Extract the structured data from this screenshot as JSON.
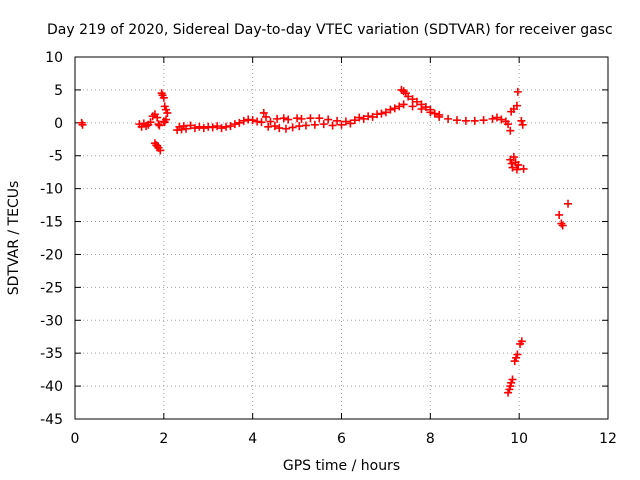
{
  "chart_data": {
    "type": "scatter",
    "title": "Day 219 of 2020, Sidereal Day-to-day VTEC variation (SDTVAR) for receiver gasc",
    "xlabel": "GPS time / hours",
    "ylabel": "SDTVAR / TECUs",
    "xlim": [
      0,
      12
    ],
    "ylim": [
      -45,
      10
    ],
    "x_ticks": [
      0,
      2,
      4,
      6,
      8,
      10,
      12
    ],
    "y_ticks": [
      10,
      5,
      0,
      -5,
      -10,
      -15,
      -20,
      -25,
      -30,
      -35,
      -40,
      -45
    ],
    "grid": true,
    "marker": "+",
    "color": "#ff0000",
    "series": [
      {
        "name": "SDTVAR",
        "points": [
          [
            0.15,
            0.0
          ],
          [
            0.17,
            -0.3
          ],
          [
            1.45,
            -0.2
          ],
          [
            1.5,
            -0.6
          ],
          [
            1.55,
            -0.1
          ],
          [
            1.6,
            -0.5
          ],
          [
            1.65,
            -0.3
          ],
          [
            1.7,
            0.1
          ],
          [
            1.75,
            1.0
          ],
          [
            1.8,
            1.3
          ],
          [
            1.85,
            0.8
          ],
          [
            1.88,
            -0.2
          ],
          [
            1.9,
            -0.4
          ],
          [
            1.85,
            -3.5
          ],
          [
            1.88,
            -3.8
          ],
          [
            1.92,
            -4.2
          ],
          [
            1.8,
            -3.1
          ],
          [
            1.83,
            -3.4
          ],
          [
            1.95,
            4.5
          ],
          [
            1.97,
            4.2
          ],
          [
            2.0,
            3.8
          ],
          [
            2.02,
            2.5
          ],
          [
            2.05,
            2.0
          ],
          [
            2.08,
            1.5
          ],
          [
            2.05,
            0.5
          ],
          [
            2.02,
            0.1
          ],
          [
            2.0,
            0.2
          ],
          [
            2.3,
            -1.1
          ],
          [
            2.35,
            -0.6
          ],
          [
            2.4,
            -1.0
          ],
          [
            2.45,
            -0.5
          ],
          [
            2.5,
            -0.9
          ],
          [
            2.6,
            -0.4
          ],
          [
            2.7,
            -0.8
          ],
          [
            2.8,
            -0.6
          ],
          [
            2.9,
            -0.8
          ],
          [
            3.0,
            -0.6
          ],
          [
            3.1,
            -0.7
          ],
          [
            3.2,
            -0.5
          ],
          [
            3.3,
            -0.8
          ],
          [
            3.4,
            -0.6
          ],
          [
            3.5,
            -0.5
          ],
          [
            3.6,
            -0.2
          ],
          [
            3.7,
            0.0
          ],
          [
            3.8,
            0.3
          ],
          [
            3.9,
            0.5
          ],
          [
            4.0,
            0.4
          ],
          [
            4.1,
            0.2
          ],
          [
            4.2,
            0.1
          ],
          [
            4.25,
            1.5
          ],
          [
            4.3,
            0.9
          ],
          [
            4.35,
            -0.6
          ],
          [
            4.4,
            0.2
          ],
          [
            4.5,
            -0.5
          ],
          [
            4.55,
            0.6
          ],
          [
            4.6,
            -0.8
          ],
          [
            4.7,
            0.7
          ],
          [
            4.75,
            -0.9
          ],
          [
            4.8,
            0.5
          ],
          [
            4.9,
            -0.7
          ],
          [
            5.0,
            0.7
          ],
          [
            5.05,
            -0.5
          ],
          [
            5.1,
            0.6
          ],
          [
            5.2,
            -0.4
          ],
          [
            5.3,
            0.7
          ],
          [
            5.4,
            -0.3
          ],
          [
            5.5,
            0.7
          ],
          [
            5.6,
            -0.2
          ],
          [
            5.7,
            0.5
          ],
          [
            5.8,
            -0.4
          ],
          [
            5.9,
            0.3
          ],
          [
            6.0,
            -0.3
          ],
          [
            6.1,
            0.2
          ],
          [
            6.2,
            -0.1
          ],
          [
            6.3,
            0.4
          ],
          [
            6.4,
            0.8
          ],
          [
            6.5,
            0.6
          ],
          [
            6.6,
            1.0
          ],
          [
            6.7,
            0.9
          ],
          [
            6.8,
            1.3
          ],
          [
            6.9,
            1.4
          ],
          [
            7.0,
            1.6
          ],
          [
            7.1,
            2.0
          ],
          [
            7.2,
            2.2
          ],
          [
            7.3,
            2.5
          ],
          [
            7.35,
            5.0
          ],
          [
            7.4,
            4.8
          ],
          [
            7.45,
            4.5
          ],
          [
            7.5,
            4.0
          ],
          [
            7.6,
            3.6
          ],
          [
            7.7,
            3.2
          ],
          [
            7.8,
            2.8
          ],
          [
            7.9,
            2.4
          ],
          [
            8.0,
            2.0
          ],
          [
            8.1,
            1.4
          ],
          [
            8.2,
            0.9
          ],
          [
            7.4,
            2.8
          ],
          [
            7.6,
            2.5
          ],
          [
            7.8,
            2.1
          ],
          [
            8.0,
            1.6
          ],
          [
            8.2,
            1.2
          ],
          [
            8.4,
            0.6
          ],
          [
            8.6,
            0.4
          ],
          [
            8.8,
            0.3
          ],
          [
            9.0,
            0.3
          ],
          [
            9.2,
            0.4
          ],
          [
            9.4,
            0.6
          ],
          [
            9.5,
            0.8
          ],
          [
            9.6,
            0.5
          ],
          [
            9.7,
            0.2
          ],
          [
            9.75,
            -0.2
          ],
          [
            9.8,
            -1.2
          ],
          [
            9.82,
            1.7
          ],
          [
            9.88,
            2.1
          ],
          [
            9.95,
            2.6
          ],
          [
            9.97,
            4.7
          ],
          [
            10.05,
            0.3
          ],
          [
            10.08,
            -0.3
          ],
          [
            9.8,
            -5.6
          ],
          [
            9.83,
            -6.2
          ],
          [
            9.85,
            -6.8
          ],
          [
            9.88,
            -5.2
          ],
          [
            9.92,
            -6.0
          ],
          [
            9.95,
            -7.1
          ],
          [
            9.98,
            -6.4
          ],
          [
            10.1,
            -7.0
          ],
          [
            9.75,
            -41.0
          ],
          [
            9.78,
            -40.5
          ],
          [
            9.8,
            -40.0
          ],
          [
            9.82,
            -39.5
          ],
          [
            9.85,
            -39.0
          ],
          [
            9.9,
            -36.2
          ],
          [
            9.93,
            -35.7
          ],
          [
            9.96,
            -35.2
          ],
          [
            10.02,
            -33.6
          ],
          [
            10.06,
            -33.2
          ],
          [
            10.9,
            -14.0
          ],
          [
            10.95,
            -15.3
          ],
          [
            10.98,
            -15.6
          ],
          [
            11.1,
            -12.3
          ]
        ]
      }
    ]
  }
}
